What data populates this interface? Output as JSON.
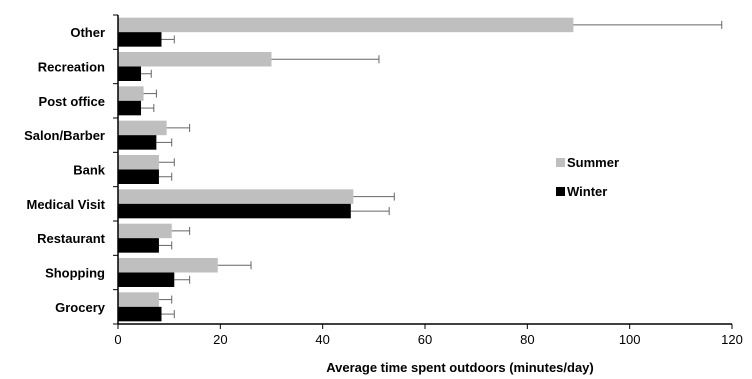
{
  "chart_data": {
    "type": "bar",
    "orientation": "horizontal",
    "categories": [
      "Other",
      "Recreation",
      "Post office",
      "Salon/Barber",
      "Bank",
      "Medical Visit",
      "Restaurant",
      "Shopping",
      "Grocery"
    ],
    "series": [
      {
        "name": "Summer",
        "color": "#bfbfbf",
        "values": [
          89,
          30,
          5,
          9.5,
          8,
          46,
          10.5,
          19.5,
          8
        ],
        "errors": [
          29,
          21,
          2.5,
          4.5,
          3,
          8,
          3.5,
          6.5,
          2.5
        ]
      },
      {
        "name": "Winter",
        "color": "#000000",
        "values": [
          8.5,
          4.5,
          4.5,
          7.5,
          8,
          45.5,
          8,
          11,
          8.5
        ],
        "errors": [
          2.5,
          2,
          2.5,
          3,
          2.5,
          7.5,
          2.5,
          3,
          2.5
        ]
      }
    ],
    "xlabel": "Average time spent outdoors (minutes/day)",
    "xlim": [
      0,
      120
    ],
    "xticks": [
      "0",
      "20",
      "40",
      "60",
      "80",
      "100",
      "120"
    ],
    "grid": false,
    "legend_position": "right"
  }
}
